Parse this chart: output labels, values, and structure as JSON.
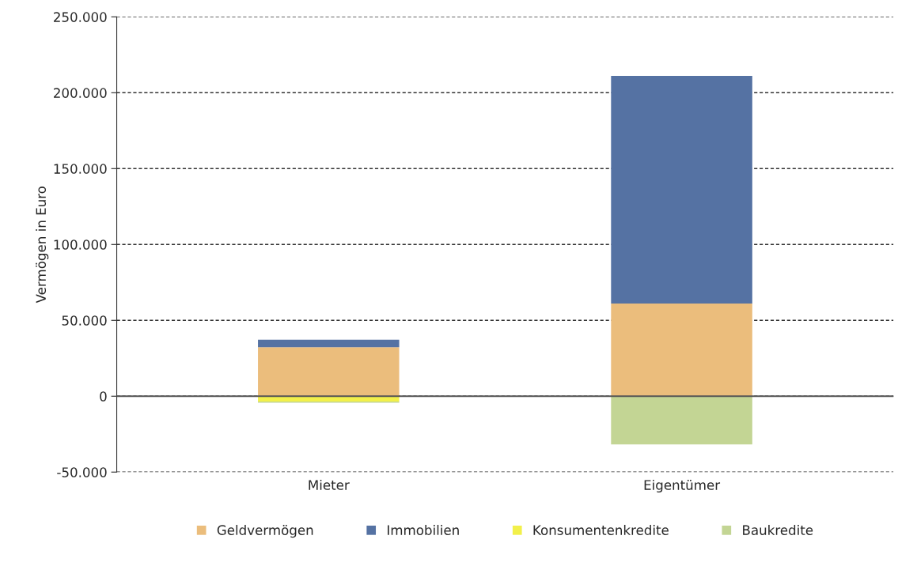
{
  "chart_data": {
    "type": "bar",
    "stacked": true,
    "ylabel": "Vermögen in Euro",
    "categories": [
      "Mieter",
      "Eigentümer"
    ],
    "series": [
      {
        "name": "Geldvermögen",
        "color": "#ebbd7c",
        "values": [
          32300,
          61100
        ]
      },
      {
        "name": "Immobilien",
        "color": "#5572a3",
        "values": [
          5000,
          150000
        ]
      },
      {
        "name": "Konsumentenkredite",
        "color": "#f2f04a",
        "values": [
          -3500,
          0
        ]
      },
      {
        "name": "Baukredite",
        "color": "#c3d594",
        "values": [
          -800,
          -31800
        ]
      }
    ],
    "ylim": [
      -50000,
      250000
    ],
    "yticks": [
      {
        "value": -50000,
        "label": "-50.000"
      },
      {
        "value": 0,
        "label": "0"
      },
      {
        "value": 50000,
        "label": "50.000"
      },
      {
        "value": 100000,
        "label": "100.000"
      },
      {
        "value": 150000,
        "label": "150.000"
      },
      {
        "value": 200000,
        "label": "200.000"
      },
      {
        "value": 250000,
        "label": "250.000"
      }
    ],
    "grid": "y",
    "legend": "bottom"
  }
}
